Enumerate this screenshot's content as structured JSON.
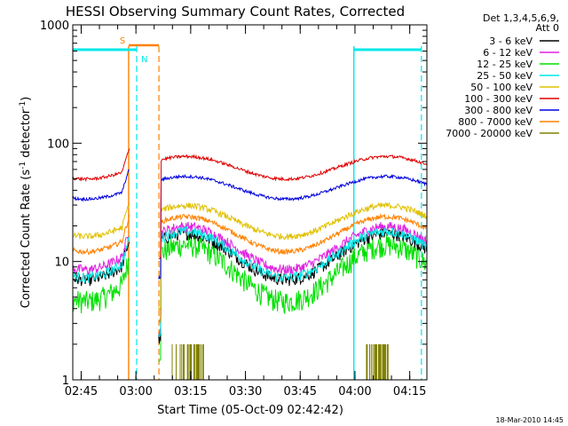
{
  "chart_data": {
    "type": "line",
    "title": "HESSI Observing Summary Count Rates, Corrected",
    "xlabel": "Start Time (05-Oct-09 02:42:42)",
    "ylabel_main": "Corrected Count Rate (s",
    "ylabel_sup1": "-1",
    "ylabel_mid": " detector",
    "ylabel_sup2": "-1",
    "ylabel_end": ")",
    "x_ticks": [
      "02:45",
      "03:00",
      "03:15",
      "03:30",
      "03:45",
      "04:00",
      "04:15"
    ],
    "x_tick_minutes": [
      2.3,
      17.3,
      32.3,
      47.3,
      62.3,
      77.3,
      92.3
    ],
    "xlim_minutes": [
      0,
      97
    ],
    "y_scale": "log",
    "ylim": [
      1,
      1000
    ],
    "y_ticks": [
      "1",
      "10",
      "100",
      "1000"
    ],
    "y_tick_values": [
      1,
      10,
      100,
      1000
    ],
    "legend_header": [
      "Det 1,3,4,5,6,9,",
      "Att 0"
    ],
    "legend_position": "top-right outside",
    "footer_date": "18-Mar-2010 14:45",
    "series": [
      {
        "name": "3 - 6 keV",
        "color": "#000000",
        "base": 11,
        "amp": 0.45,
        "noise": 0.12
      },
      {
        "name": "6 - 12 keV",
        "color": "#e020e0",
        "base": 13,
        "amp": 0.42,
        "noise": 0.1
      },
      {
        "name": "12 - 25 keV",
        "color": "#00e000",
        "base": 8,
        "amp": 0.55,
        "noise": 0.22
      },
      {
        "name": "25 - 50 keV",
        "color": "#00e8e8",
        "base": 11.5,
        "amp": 0.45,
        "noise": 0.1
      },
      {
        "name": "50 - 100 keV",
        "color": "#e0c000",
        "base": 22,
        "amp": 0.3,
        "noise": 0.06
      },
      {
        "name": "100 - 300 keV",
        "color": "#e00000",
        "base": 62,
        "amp": 0.22,
        "noise": 0.03
      },
      {
        "name": "300 - 800 keV",
        "color": "#0000e0",
        "base": 42,
        "amp": 0.22,
        "noise": 0.03
      },
      {
        "name": "800 - 7000 keV",
        "color": "#ff8000",
        "base": 17,
        "amp": 0.34,
        "noise": 0.05
      },
      {
        "name": "7000 - 20000 keV",
        "color": "#808000",
        "base": 1,
        "amp": 0,
        "noise": 0
      }
    ],
    "data_segments_minutes": [
      [
        0,
        15.5
      ],
      [
        23.5,
        97
      ]
    ],
    "flags": {
      "saa_label": "S",
      "night_label": "N",
      "saa_color": "#ff8000",
      "night_color": "#00e8e8",
      "saa_interval_minutes": [
        15.3,
        23.6
      ],
      "night_intervals_minutes": [
        [
          0,
          17.5
        ],
        [
          77.0,
          95.5
        ]
      ],
      "flag_level": 660
    },
    "high_energy_bursts_minutes": [
      [
        27,
        36
      ],
      [
        80,
        87
      ]
    ],
    "high_energy_burst_level": 2
  }
}
